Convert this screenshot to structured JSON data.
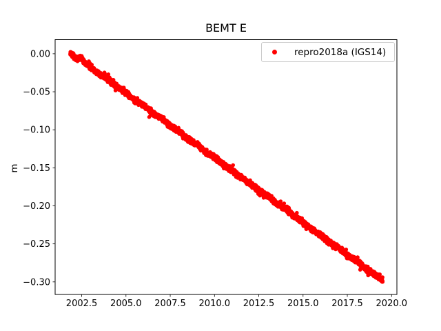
{
  "figure": {
    "background": "#ffffff"
  },
  "chart_data": {
    "type": "scatter",
    "title": "BEMT E",
    "xlabel": "",
    "ylabel": "m",
    "grid": false,
    "xlim": [
      2001.0,
      2020.3
    ],
    "ylim": [
      -0.3165,
      0.0185
    ],
    "xtick_values": [
      2002.5,
      2005.0,
      2007.5,
      2010.0,
      2012.5,
      2015.0,
      2017.5,
      2020.0
    ],
    "xtick_labels": [
      "2002.5",
      "2005.0",
      "2007.5",
      "2010.0",
      "2012.5",
      "2015.0",
      "2017.5",
      "2020.0"
    ],
    "ytick_values": [
      0.0,
      -0.05,
      -0.1,
      -0.15,
      -0.2,
      -0.25,
      -0.3
    ],
    "ytick_labels": [
      "0.00",
      "−0.05",
      "−0.10",
      "−0.15",
      "−0.20",
      "−0.25",
      "−0.30"
    ],
    "legend": {
      "position": "upper right",
      "entries": [
        {
          "label": "repro2018a (IGS14)",
          "color": "#ff0000",
          "marker": "dot"
        }
      ]
    },
    "series": [
      {
        "name": "repro2018a (IGS14)",
        "color": "#ff0000",
        "marker": "dot",
        "marker_radius_px": 2.8,
        "points_per_year": 160,
        "noise_std_m": 0.0016,
        "anchors": {
          "x": [
            2001.85,
            2002.0,
            2002.2,
            2002.45,
            2002.7,
            2003.0,
            2003.5,
            2004.0,
            2004.5,
            2005.0,
            2005.5,
            2006.0,
            2006.5,
            2007.0,
            2007.5,
            2008.0,
            2008.5,
            2009.0,
            2009.5,
            2010.0,
            2010.5,
            2011.0,
            2011.5,
            2012.0,
            2012.5,
            2013.0,
            2013.5,
            2014.0,
            2014.5,
            2015.0,
            2015.5,
            2016.0,
            2016.5,
            2017.0,
            2017.5,
            2018.0,
            2018.5,
            2019.0,
            2019.5
          ],
          "y": [
            0.001,
            -0.002,
            -0.008,
            -0.005,
            -0.013,
            -0.018,
            -0.027,
            -0.034,
            -0.044,
            -0.051,
            -0.061,
            -0.068,
            -0.078,
            -0.085,
            -0.095,
            -0.102,
            -0.112,
            -0.119,
            -0.129,
            -0.136,
            -0.146,
            -0.153,
            -0.163,
            -0.17,
            -0.18,
            -0.187,
            -0.197,
            -0.204,
            -0.214,
            -0.221,
            -0.231,
            -0.238,
            -0.248,
            -0.255,
            -0.265,
            -0.272,
            -0.282,
            -0.289,
            -0.298
          ]
        }
      }
    ]
  }
}
